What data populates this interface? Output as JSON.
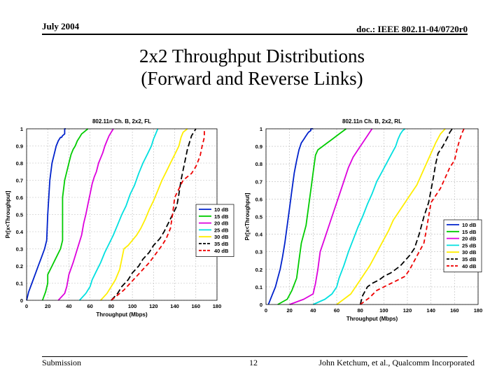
{
  "header": {
    "date": "July 2004",
    "doc_id": "doc.: IEEE 802.11-04/0720r0"
  },
  "slide": {
    "title_line1": "2x2 Throughput Distributions",
    "title_line2": "(Forward and Reverse Links)"
  },
  "footer": {
    "left": "Submission",
    "page": "12",
    "right": "John Ketchum, et al., Qualcomm Incorporated"
  },
  "chart_data": [
    {
      "type": "line",
      "title": "802.11n Ch. B, 2x2, FL",
      "xlabel": "Throughput (Mbps)",
      "ylabel": "Pr[x<Throughput]",
      "xlim": [
        0,
        180
      ],
      "ylim": [
        0,
        1
      ],
      "xticks": [
        "0",
        "20",
        "40",
        "60",
        "80",
        "100",
        "120",
        "140",
        "160",
        "180"
      ],
      "yticks": [
        "0",
        "0.1",
        "0.2",
        "0.3",
        "0.4",
        "0.5",
        "0.6",
        "0.7",
        "0.8",
        "0.9",
        "1"
      ],
      "grid": true,
      "legend_position": "right-middle",
      "series": [
        {
          "name": "10 dB",
          "color": "#0022cc",
          "dash": "solid",
          "x": [
            0,
            2,
            5,
            8,
            11,
            14,
            17,
            19,
            20,
            22,
            24,
            26,
            28,
            30,
            32,
            33,
            34,
            36,
            36,
            37
          ],
          "y": [
            0,
            0.05,
            0.1,
            0.15,
            0.2,
            0.25,
            0.3,
            0.35,
            0.5,
            0.7,
            0.8,
            0.85,
            0.9,
            0.93,
            0.95,
            0.95,
            0.96,
            0.97,
            1,
            1
          ]
        },
        {
          "name": "15 dB",
          "color": "#00cc00",
          "dash": "solid",
          "x": [
            15,
            18,
            20,
            20,
            24,
            28,
            32,
            34,
            34,
            36,
            38,
            40,
            42,
            44,
            46,
            48,
            50,
            52,
            54,
            56,
            58
          ],
          "y": [
            0,
            0.05,
            0.1,
            0.15,
            0.2,
            0.25,
            0.3,
            0.35,
            0.6,
            0.7,
            0.75,
            0.8,
            0.85,
            0.88,
            0.9,
            0.93,
            0.95,
            0.97,
            0.98,
            0.99,
            1
          ]
        },
        {
          "name": "20 dB",
          "color": "#dd00dd",
          "dash": "solid",
          "x": [
            30,
            36,
            38,
            40,
            44,
            48,
            52,
            54,
            56,
            58,
            60,
            62,
            64,
            66,
            68,
            70,
            72,
            74,
            76,
            78,
            80,
            82
          ],
          "y": [
            0,
            0.04,
            0.08,
            0.15,
            0.22,
            0.3,
            0.38,
            0.45,
            0.5,
            0.56,
            0.62,
            0.68,
            0.72,
            0.75,
            0.8,
            0.83,
            0.86,
            0.9,
            0.93,
            0.96,
            0.98,
            1
          ]
        },
        {
          "name": "25 dB",
          "color": "#00e0e0",
          "dash": "solid",
          "x": [
            50,
            56,
            60,
            62,
            66,
            70,
            74,
            78,
            82,
            86,
            90,
            94,
            98,
            102,
            106,
            110,
            114,
            118,
            120,
            122,
            124
          ],
          "y": [
            0,
            0.04,
            0.08,
            0.12,
            0.17,
            0.22,
            0.28,
            0.33,
            0.38,
            0.44,
            0.5,
            0.55,
            0.62,
            0.67,
            0.74,
            0.8,
            0.85,
            0.9,
            0.94,
            0.97,
            1
          ]
        },
        {
          "name": "30 dB",
          "color": "#ffee00",
          "dash": "solid",
          "x": [
            70,
            76,
            80,
            84,
            88,
            90,
            92,
            96,
            100,
            104,
            108,
            112,
            116,
            120,
            124,
            128,
            132,
            136,
            140,
            144,
            146,
            148,
            152
          ],
          "y": [
            0,
            0.04,
            0.08,
            0.12,
            0.18,
            0.24,
            0.3,
            0.32,
            0.35,
            0.38,
            0.42,
            0.47,
            0.53,
            0.58,
            0.64,
            0.7,
            0.75,
            0.8,
            0.85,
            0.9,
            0.95,
            0.98,
            1
          ]
        },
        {
          "name": "35 dB",
          "color": "#000000",
          "dash": "8,4",
          "x": [
            80,
            86,
            90,
            96,
            100,
            106,
            110,
            116,
            120,
            126,
            130,
            134,
            138,
            142,
            144,
            146,
            148,
            150,
            152,
            154,
            156,
            158,
            160
          ],
          "y": [
            0,
            0.04,
            0.08,
            0.12,
            0.16,
            0.2,
            0.24,
            0.28,
            0.32,
            0.36,
            0.4,
            0.45,
            0.5,
            0.55,
            0.62,
            0.7,
            0.76,
            0.82,
            0.88,
            0.92,
            0.96,
            0.98,
            1
          ]
        },
        {
          "name": "40 dB",
          "color": "#ee0000",
          "dash": "6,4",
          "x": [
            80,
            86,
            92,
            98,
            104,
            110,
            116,
            122,
            128,
            132,
            136,
            138,
            140,
            144,
            148,
            152,
            156,
            160,
            164,
            166,
            168,
            168
          ],
          "y": [
            0,
            0.03,
            0.06,
            0.1,
            0.14,
            0.18,
            0.22,
            0.27,
            0.32,
            0.36,
            0.42,
            0.5,
            0.6,
            0.65,
            0.7,
            0.72,
            0.74,
            0.78,
            0.84,
            0.9,
            0.95,
            1
          ]
        }
      ]
    },
    {
      "type": "line",
      "title": "802.11n Ch. B, 2x2, RL",
      "xlabel": "Throughput (Mbps)",
      "ylabel": "Pr[x<Throughput]",
      "xlim": [
        0,
        180
      ],
      "ylim": [
        0,
        1
      ],
      "xticks": [
        "0",
        "20",
        "40",
        "60",
        "80",
        "100",
        "120",
        "140",
        "160",
        "180"
      ],
      "yticks": [
        "0",
        "0.1",
        "0.2",
        "0.3",
        "0.4",
        "0.5",
        "0.6",
        "0.7",
        "0.8",
        "0.9",
        "1"
      ],
      "grid": true,
      "legend_position": "right-middle",
      "series": [
        {
          "name": "10 dB",
          "color": "#0022cc",
          "dash": "solid",
          "x": [
            2,
            5,
            8,
            10,
            12,
            14,
            16,
            18,
            20,
            22,
            24,
            26,
            28,
            30,
            32,
            34,
            36,
            38,
            38,
            40
          ],
          "y": [
            0,
            0.05,
            0.1,
            0.15,
            0.2,
            0.27,
            0.35,
            0.45,
            0.55,
            0.65,
            0.75,
            0.82,
            0.88,
            0.92,
            0.94,
            0.96,
            0.98,
            0.99,
            1,
            1
          ]
        },
        {
          "name": "15 dB",
          "color": "#00cc00",
          "dash": "solid",
          "x": [
            10,
            18,
            22,
            26,
            28,
            30,
            34,
            36,
            38,
            40,
            42,
            44,
            48,
            52,
            56,
            60,
            64,
            66,
            68
          ],
          "y": [
            0,
            0.03,
            0.08,
            0.15,
            0.25,
            0.35,
            0.45,
            0.55,
            0.65,
            0.75,
            0.85,
            0.88,
            0.9,
            0.92,
            0.94,
            0.96,
            0.98,
            0.99,
            1
          ]
        },
        {
          "name": "20 dB",
          "color": "#dd00dd",
          "dash": "solid",
          "x": [
            20,
            32,
            40,
            42,
            44,
            46,
            50,
            54,
            58,
            62,
            66,
            70,
            74,
            78,
            82,
            86,
            88,
            90
          ],
          "y": [
            0,
            0.03,
            0.06,
            0.12,
            0.2,
            0.3,
            0.38,
            0.46,
            0.54,
            0.62,
            0.7,
            0.78,
            0.84,
            0.88,
            0.92,
            0.96,
            0.98,
            1
          ]
        },
        {
          "name": "25 dB",
          "color": "#00e0e0",
          "dash": "solid",
          "x": [
            40,
            50,
            56,
            60,
            62,
            66,
            70,
            74,
            78,
            82,
            86,
            90,
            94,
            98,
            102,
            106,
            110,
            112,
            114,
            116,
            118
          ],
          "y": [
            0,
            0.03,
            0.06,
            0.1,
            0.15,
            0.22,
            0.3,
            0.37,
            0.44,
            0.5,
            0.57,
            0.63,
            0.7,
            0.75,
            0.8,
            0.85,
            0.9,
            0.94,
            0.97,
            0.99,
            1
          ]
        },
        {
          "name": "30 dB",
          "color": "#ffee00",
          "dash": "solid",
          "x": [
            60,
            66,
            72,
            76,
            80,
            84,
            88,
            92,
            96,
            100,
            104,
            108,
            112,
            116,
            120,
            124,
            128,
            132,
            136,
            140,
            144,
            148,
            152
          ],
          "y": [
            0,
            0.03,
            0.06,
            0.1,
            0.14,
            0.18,
            0.22,
            0.27,
            0.32,
            0.37,
            0.42,
            0.48,
            0.52,
            0.56,
            0.6,
            0.64,
            0.68,
            0.74,
            0.8,
            0.86,
            0.92,
            0.97,
            1
          ]
        },
        {
          "name": "35 dB",
          "color": "#000000",
          "dash": "8,4",
          "x": [
            80,
            82,
            86,
            90,
            96,
            100,
            106,
            110,
            114,
            118,
            122,
            126,
            130,
            134,
            138,
            140,
            142,
            144,
            146,
            150,
            154,
            156,
            158
          ],
          "y": [
            0,
            0.05,
            0.1,
            0.12,
            0.14,
            0.16,
            0.18,
            0.2,
            0.22,
            0.25,
            0.28,
            0.32,
            0.4,
            0.5,
            0.58,
            0.65,
            0.72,
            0.8,
            0.86,
            0.9,
            0.95,
            0.98,
            1
          ]
        },
        {
          "name": "40 dB",
          "color": "#ee0000",
          "dash": "6,4",
          "x": [
            80,
            88,
            94,
            100,
            106,
            112,
            118,
            122,
            126,
            130,
            134,
            136,
            138,
            140,
            144,
            148,
            152,
            156,
            160,
            162,
            164,
            166,
            168
          ],
          "y": [
            0,
            0.04,
            0.08,
            0.1,
            0.12,
            0.14,
            0.16,
            0.2,
            0.25,
            0.3,
            0.35,
            0.42,
            0.5,
            0.58,
            0.62,
            0.66,
            0.72,
            0.78,
            0.82,
            0.88,
            0.93,
            0.97,
            1
          ]
        }
      ]
    }
  ]
}
